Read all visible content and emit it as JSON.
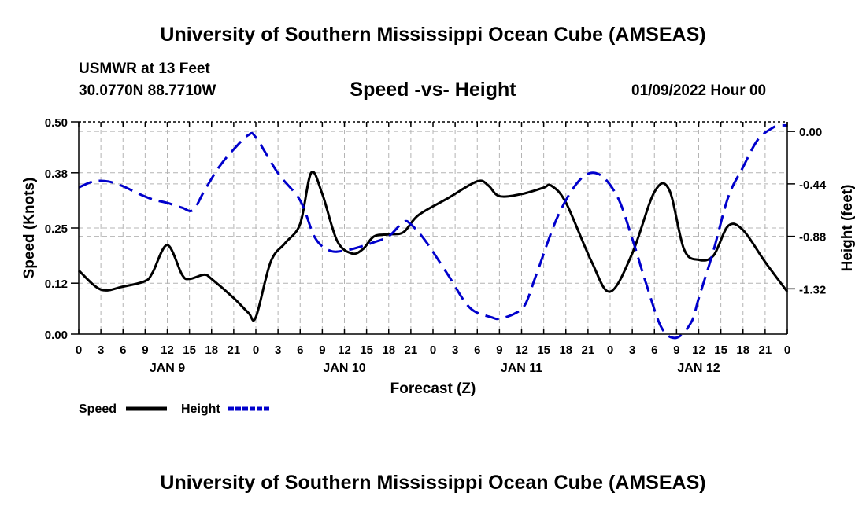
{
  "header": {
    "main_title": "University of Southern Mississippi Ocean Cube (AMSEAS)",
    "station": "USMWR at 13 Feet",
    "coordinates": "30.0770N  88.7710W",
    "date": "01/09/2022 Hour 00",
    "footer_title": "University of Southern Mississippi Ocean Cube (AMSEAS)"
  },
  "chart_data": {
    "type": "line",
    "title": "Speed -vs- Height",
    "xlabel": "Forecast (Z)",
    "ylabel_left": "Speed (Knots)",
    "ylabel_right": "Height (feet)",
    "x_unit": "hours since 01/09/2022 00Z",
    "xlim": [
      0,
      96
    ],
    "ylim_left": [
      0,
      0.5
    ],
    "ylim_right": [
      -1.7,
      0.08
    ],
    "x_tick_labels": [
      "0",
      "3",
      "6",
      "9",
      "12",
      "15",
      "18",
      "21",
      "0",
      "3",
      "6",
      "9",
      "12",
      "15",
      "18",
      "21",
      "0",
      "3",
      "6",
      "9",
      "12",
      "15",
      "18",
      "21",
      "0",
      "3",
      "6",
      "9",
      "12",
      "15",
      "18",
      "21",
      "0"
    ],
    "y_left_ticks": [
      0.0,
      0.12,
      0.25,
      0.38,
      0.5
    ],
    "y_left_tick_labels": [
      "0.00",
      "0.12",
      "0.25",
      "0.38",
      "0.50"
    ],
    "y_right_ticks": [
      0.0,
      -0.44,
      -0.88,
      -1.32
    ],
    "y_right_tick_labels": [
      "0.00",
      "-0.44",
      "-0.88",
      "-1.32"
    ],
    "day_labels": [
      {
        "label": "JAN 9",
        "x": 12
      },
      {
        "label": "JAN 10",
        "x": 36
      },
      {
        "label": "JAN 11",
        "x": 60
      },
      {
        "label": "JAN 12",
        "x": 84
      }
    ],
    "grid": true,
    "legend": [
      {
        "label": "Speed",
        "color": "#000000",
        "style": "solid"
      },
      {
        "label": "Height",
        "color": "#0000cc",
        "style": "dashed"
      }
    ],
    "series": [
      {
        "name": "Speed",
        "axis": "left",
        "color": "#000000",
        "x": [
          0,
          3,
          6,
          9,
          10,
          12,
          14,
          15,
          17,
          18,
          21,
          23,
          24,
          26,
          28,
          30,
          31.5,
          33,
          35,
          37,
          38.5,
          40,
          42,
          44,
          46,
          50,
          54,
          55.5,
          57,
          60,
          63,
          64,
          66,
          69.5,
          72,
          75,
          78,
          80,
          82,
          84,
          86,
          88,
          90,
          93,
          96
        ],
        "y": [
          0.15,
          0.105,
          0.112,
          0.125,
          0.145,
          0.21,
          0.14,
          0.13,
          0.14,
          0.13,
          0.085,
          0.05,
          0.04,
          0.17,
          0.215,
          0.26,
          0.38,
          0.33,
          0.22,
          0.19,
          0.2,
          0.23,
          0.235,
          0.24,
          0.28,
          0.32,
          0.36,
          0.35,
          0.325,
          0.33,
          0.345,
          0.35,
          0.31,
          0.17,
          0.1,
          0.19,
          0.335,
          0.34,
          0.2,
          0.175,
          0.185,
          0.255,
          0.245,
          0.17,
          0.1
        ]
      },
      {
        "name": "Height",
        "axis": "right",
        "color": "#0000cc",
        "x": [
          0,
          2,
          4,
          6,
          8,
          10,
          12,
          14,
          15.5,
          17,
          19,
          21,
          23,
          24,
          27,
          30,
          32,
          34,
          36,
          38,
          40,
          42,
          44,
          45,
          47,
          50,
          53,
          56,
          57,
          59,
          60.5,
          62,
          65,
          68,
          70.5,
          73,
          75,
          77,
          79,
          81,
          83,
          84,
          86,
          88,
          90,
          92,
          94,
          95,
          96
        ],
        "y": [
          -0.47,
          -0.42,
          -0.42,
          -0.46,
          -0.52,
          -0.57,
          -0.6,
          -0.64,
          -0.66,
          -0.5,
          -0.3,
          -0.15,
          -0.03,
          -0.05,
          -0.35,
          -0.58,
          -0.89,
          -1.0,
          -1.0,
          -0.97,
          -0.93,
          -0.88,
          -0.76,
          -0.78,
          -0.92,
          -1.2,
          -1.48,
          -1.56,
          -1.57,
          -1.53,
          -1.45,
          -1.2,
          -0.7,
          -0.4,
          -0.36,
          -0.55,
          -0.9,
          -1.3,
          -1.65,
          -1.73,
          -1.6,
          -1.4,
          -1.0,
          -0.55,
          -0.3,
          -0.07,
          0.03,
          0.05,
          0.05
        ]
      }
    ]
  }
}
